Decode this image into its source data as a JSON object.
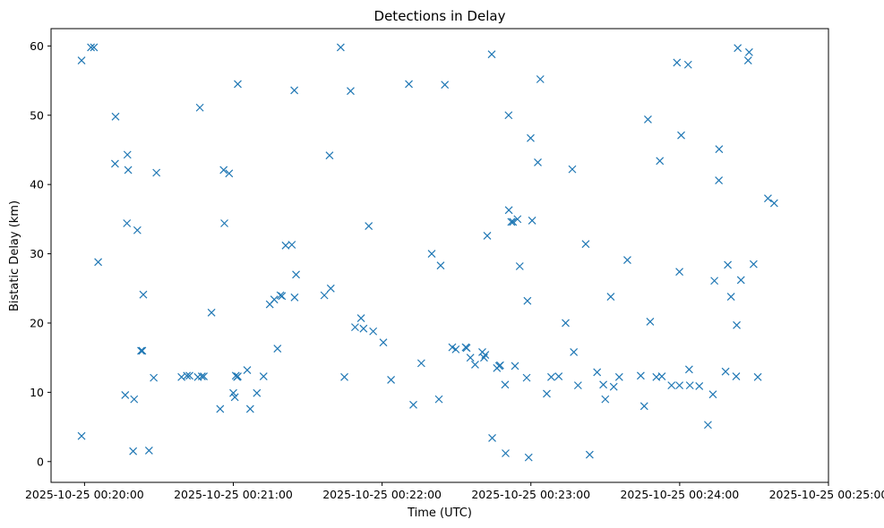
{
  "chart_data": {
    "type": "scatter",
    "title": "Detections in Delay",
    "xlabel": "Time (UTC)",
    "ylabel": "Bistatic Delay (km)",
    "x_unit": "seconds since 2025-10-25 00:20:00",
    "xlim": [
      -13.5,
      300
    ],
    "ylim": [
      -3,
      62.5
    ],
    "marker": "x",
    "color": "#1f77b4",
    "grid": false,
    "xticks": [
      {
        "value": 0,
        "label": "2025-10-25 00:20:00"
      },
      {
        "value": 60,
        "label": "2025-10-25 00:21:00"
      },
      {
        "value": 120,
        "label": "2025-10-25 00:22:00"
      },
      {
        "value": 180,
        "label": "2025-10-25 00:23:00"
      },
      {
        "value": 240,
        "label": "2025-10-25 00:24:00"
      },
      {
        "value": 300,
        "label": "2025-10-25 00:25:00"
      }
    ],
    "yticks": [
      {
        "value": 0,
        "label": "0"
      },
      {
        "value": 10,
        "label": "10"
      },
      {
        "value": 20,
        "label": "20"
      },
      {
        "value": 30,
        "label": "30"
      },
      {
        "value": 40,
        "label": "40"
      },
      {
        "value": 50,
        "label": "50"
      },
      {
        "value": 60,
        "label": "60"
      }
    ],
    "series": [
      {
        "name": "Detections",
        "x": [
          -1.2,
          3.8,
          12.5,
          46.5,
          61.8,
          84.6,
          103.3,
          107.3,
          130.8,
          145.3,
          164.2,
          171.0,
          179.9,
          238.9,
          268.0,
          -1.2,
          5.5,
          21.3,
          19.6,
          23.7,
          23.3,
          51.2,
          85.3,
          99.3,
          111.5,
          135.8,
          142.9,
          179.1,
          197.3,
          258.5,
          264.7,
          269.8,
          16.4,
          20.0,
          22.8,
          12.3,
          17.3,
          17.6,
          17.1,
          61.0,
          61.5,
          61.8,
          66.8,
          29.0,
          69.5,
          2.6,
          26.0,
          27.9,
          45.7,
          48.1,
          47.3,
          54.7,
          56.4,
          56.1,
          58.3,
          60.0,
          60.6,
          65.6,
          72.2,
          77.8,
          79.0,
          79.6,
          84.7,
          39.1,
          41.3,
          42.3,
          81.1,
          83.6,
          98.8,
          76.5,
          74.7,
          96.7,
          114.6,
          109.1,
          112.5,
          116.4,
          140.0,
          143.6,
          149.7,
          160.4,
          161.6,
          104.8,
          120.5,
          123.6,
          132.6,
          153.7,
          154.1,
          155.6,
          157.5,
          161.1,
          166.3,
          167.2,
          173.6,
          167.6,
          169.8,
          172.1,
          172.8,
          171.1,
          162.4,
          175.5,
          178.6,
          148.3,
          186.4,
          164.4,
          169.6,
          174.6,
          180.5,
          182.8,
          183.8,
          196.7,
          191.2,
          202.1,
          218.9,
          227.2,
          255.8,
          232.0,
          228.1,
          224.3,
          239.9,
          243.4,
          239.9,
          243.8,
          254.0,
          259.4,
          260.7,
          263.0,
          271.5,
          275.6,
          278.1,
          267.6,
          263.4,
          255.9,
          240.6,
          225.7,
          210.0,
          203.7,
          188.2,
          178.3,
          230.6,
          232.8,
          236.7,
          244.1,
          247.9,
          251.4,
          253.4,
          262.8,
          215.6,
          212.2,
          194.0,
          199.0,
          206.7,
          209.2,
          213.4
        ],
        "y": [
          57.9,
          59.8,
          49.8,
          51.1,
          54.5,
          53.6,
          59.8,
          53.5,
          54.5,
          54.4,
          58.8,
          50.0,
          46.7,
          57.6,
          59.1,
          3.7,
          28.8,
          33.4,
          1.5,
          24.1,
          16.0,
          21.5,
          27.0,
          25.0,
          20.7,
          14.2,
          9.0,
          0.6,
          15.8,
          13.0,
          26.2,
          28.5,
          9.6,
          9.0,
          16.0,
          43.0,
          44.3,
          42.1,
          34.4,
          12.4,
          12.2,
          12.3,
          7.6,
          41.7,
          9.9,
          59.8,
          1.6,
          12.1,
          12.2,
          12.3,
          12.3,
          7.6,
          34.4,
          42.1,
          41.6,
          9.9,
          9.3,
          13.2,
          12.3,
          16.3,
          24.0,
          23.9,
          23.7,
          12.2,
          12.4,
          12.4,
          31.2,
          31.3,
          44.2,
          23.4,
          22.7,
          24.0,
          34.0,
          19.4,
          19.2,
          18.8,
          30.0,
          28.3,
          16.2,
          15.8,
          15.4,
          12.2,
          17.2,
          11.8,
          8.2,
          16.5,
          16.4,
          15.0,
          14.0,
          15.0,
          13.5,
          13.8,
          13.8,
          13.9,
          1.2,
          34.6,
          34.6,
          36.3,
          32.6,
          28.2,
          23.2,
          16.5,
          9.8,
          3.4,
          11.1,
          35.0,
          34.8,
          43.2,
          55.2,
          42.2,
          12.3,
          31.4,
          29.1,
          49.4,
          40.6,
          43.4,
          20.2,
          12.4,
          11.0,
          57.3,
          27.4,
          13.3,
          26.1,
          28.4,
          23.8,
          19.7,
          12.2,
          38.0,
          37.3,
          57.9,
          59.7,
          45.1,
          47.1,
          8.0,
          9.0,
          1.0,
          12.2,
          12.1,
          12.2,
          12.3,
          11.0,
          11.0,
          10.9,
          5.3,
          9.7,
          12.3,
          12.2,
          23.8,
          20.0,
          11.0,
          12.9,
          11.1,
          10.8
        ]
      }
    ]
  }
}
